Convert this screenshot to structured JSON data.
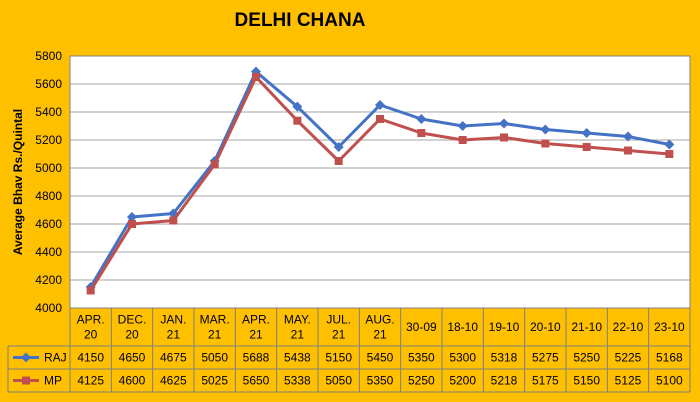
{
  "chart_data": {
    "type": "line",
    "title": "DELHI CHANA",
    "ylabel": "Average Bhav Rs./Quintal",
    "xlabel": "",
    "ylim": [
      4000,
      5800
    ],
    "yticks": [
      4000,
      4200,
      4400,
      4600,
      4800,
      5000,
      5200,
      5400,
      5600,
      5800
    ],
    "grid": true,
    "legend": "data-table-left",
    "categories": [
      [
        "APR.",
        "20"
      ],
      [
        "DEC.",
        "20"
      ],
      [
        "JAN.",
        "21"
      ],
      [
        "MAR.",
        "21"
      ],
      [
        "APR.",
        "21"
      ],
      [
        "MAY.",
        "21"
      ],
      [
        "JUL.",
        "21"
      ],
      [
        "AUG.",
        "21"
      ],
      [
        "30-09"
      ],
      [
        "18-10"
      ],
      [
        "19-10"
      ],
      [
        "20-10"
      ],
      [
        "21-10"
      ],
      [
        "22-10"
      ],
      [
        "23-10"
      ]
    ],
    "series": [
      {
        "name": "RAJ",
        "color": "#4472c4",
        "marker": "diamond",
        "values": [
          4150,
          4650,
          4675,
          5050,
          5688,
          5438,
          5150,
          5450,
          5350,
          5300,
          5318,
          5275,
          5250,
          5225,
          5168
        ]
      },
      {
        "name": "MP",
        "color": "#c0504d",
        "marker": "square",
        "values": [
          4125,
          4600,
          4625,
          5025,
          5650,
          5338,
          5050,
          5350,
          5250,
          5200,
          5218,
          5175,
          5150,
          5125,
          5100
        ]
      }
    ]
  },
  "colors": {
    "background": "#ffc000",
    "plot_area": "#ffffff",
    "grid": "#a6a6a6"
  }
}
